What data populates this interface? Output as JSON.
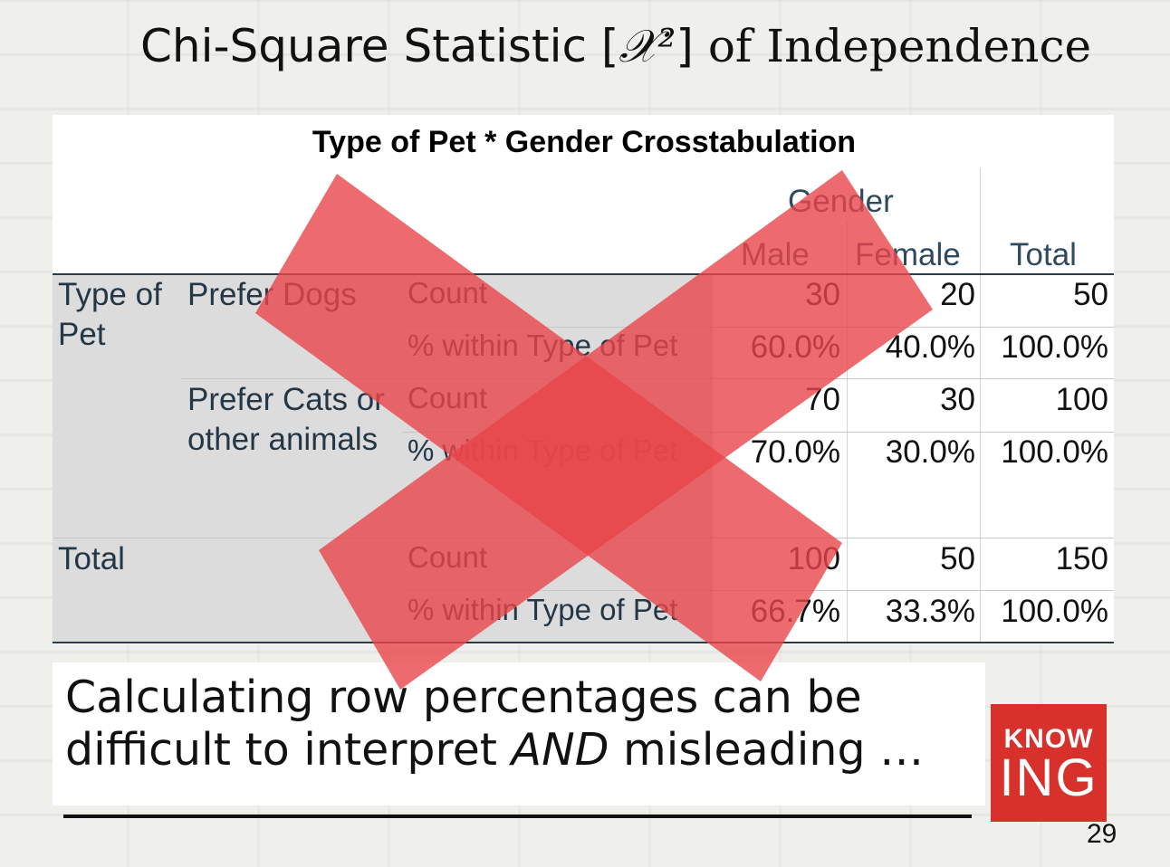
{
  "slide": {
    "title_main": "Chi-Square Statistic [",
    "title_symbol": "𝒳²",
    "title_end": "] ",
    "title_serif": "of Independence",
    "page_number": "29"
  },
  "crosstab": {
    "title": "Type of Pet * Gender Crosstabulation",
    "col_group": "Gender",
    "columns": [
      "Male",
      "Female",
      "Total"
    ],
    "row_group": "Type of Pet",
    "rows": [
      {
        "label": "Prefer Dogs",
        "count_label": "Count",
        "count": [
          "30",
          "20",
          "50"
        ],
        "pct_label": "% within Type of Pet",
        "pct": [
          "60.0%",
          "40.0%",
          "100.0%"
        ]
      },
      {
        "label": "Prefer Cats or other animals",
        "count_label": "Count",
        "count": [
          "70",
          "30",
          "100"
        ],
        "pct_label": "% within Type of Pet",
        "pct": [
          "70.0%",
          "30.0%",
          "100.0%"
        ]
      }
    ],
    "total": {
      "label": "Total",
      "count_label": "Count",
      "count": [
        "100",
        "50",
        "150"
      ],
      "pct_label": "% within Type of Pet",
      "pct": [
        "66.7%",
        "33.3%",
        "100.0%"
      ]
    }
  },
  "caption": {
    "part1": "Calculating row percentages can be difficult to interpret ",
    "emphasis": "AND",
    "part2": " misleading …"
  },
  "logo": {
    "line1": "KNOW",
    "line2": "ING",
    "color": "#d8312b"
  },
  "overlay": {
    "icon": "x-mark-icon",
    "color": "#e8454a"
  }
}
